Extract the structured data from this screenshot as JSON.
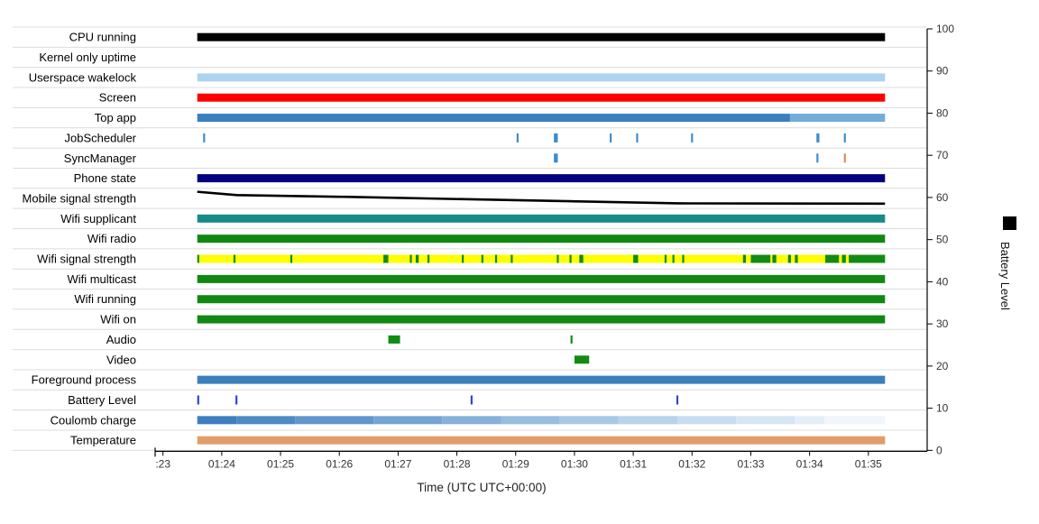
{
  "chart_data": {
    "type": "timeline",
    "title": "",
    "xlabel": "Time (UTC UTC+00:00)",
    "ylabel_right": "Battery Level",
    "x_range": [
      "01:22:52",
      "01:36:00"
    ],
    "x_ticks": [
      ":23",
      "01:24",
      "01:25",
      "01:26",
      "01:27",
      "01:28",
      "01:29",
      "01:30",
      "01:31",
      "01:32",
      "01:33",
      "01:34",
      "01:35"
    ],
    "y_right_range": [
      0,
      100
    ],
    "y_right_ticks": [
      "0",
      "10",
      "20",
      "30",
      "40",
      "50",
      "60",
      "70",
      "80",
      "90",
      "100"
    ],
    "legend": {
      "label": "Battery Level",
      "color": "#000000",
      "placement": "right"
    },
    "rows": [
      {
        "label": "CPU running",
        "color": "#000000",
        "segments": [
          [
            "01:23:35",
            "01:35:17"
          ]
        ]
      },
      {
        "label": "Kernel only uptime",
        "color": "#000000",
        "segments": []
      },
      {
        "label": "Userspace wakelock",
        "color": "#aed3ee",
        "segments": [
          [
            "01:23:35",
            "01:35:17"
          ]
        ]
      },
      {
        "label": "Screen",
        "color": "#ff0000",
        "segments": [
          [
            "01:23:35",
            "01:35:17"
          ]
        ]
      },
      {
        "label": "Top app",
        "color": "#3b7fbd",
        "segments": [
          [
            "01:23:35",
            "01:33:40"
          ],
          [
            "01:33:40",
            "01:35:17",
            "#72acd8"
          ]
        ]
      },
      {
        "label": "JobScheduler",
        "color": "#3a8cd0",
        "segments": [
          [
            "01:23:41",
            "01:23:43"
          ],
          [
            "01:29:01",
            "01:29:03"
          ],
          [
            "01:29:39",
            "01:29:43"
          ],
          [
            "01:30:36",
            "01:30:38"
          ],
          [
            "01:31:03",
            "01:31:05"
          ],
          [
            "01:31:59",
            "01:32:01"
          ],
          [
            "01:34:07",
            "01:34:10"
          ],
          [
            "01:34:35",
            "01:34:37"
          ]
        ]
      },
      {
        "label": "SyncManager",
        "color": "#3a8cd0",
        "segments": [
          [
            "01:29:39",
            "01:29:43"
          ],
          [
            "01:34:07",
            "01:34:09"
          ],
          [
            "01:34:35",
            "01:34:37",
            "#e08a50"
          ]
        ]
      },
      {
        "label": "Phone state",
        "color": "#000080",
        "segments": [
          [
            "01:23:35",
            "01:35:17"
          ]
        ]
      },
      {
        "label": "Mobile signal strength",
        "type": "line",
        "color": "#000000",
        "points": [
          [
            "01:23:35",
            0.1
          ],
          [
            "01:24:15",
            0.3
          ],
          [
            "01:26:00",
            0.4
          ],
          [
            "01:31:45",
            0.8
          ],
          [
            "01:35:17",
            0.82
          ]
        ]
      },
      {
        "label": "Wifi supplicant",
        "color": "#178a8a",
        "segments": [
          [
            "01:23:35",
            "01:35:17"
          ]
        ]
      },
      {
        "label": "Wifi radio",
        "color": "#118811",
        "segments": [
          [
            "01:23:35",
            "01:35:17"
          ]
        ]
      },
      {
        "label": "Wifi signal strength",
        "color": "#ffff00",
        "segments": [
          [
            "01:23:35",
            "01:35:17"
          ]
        ],
        "marks_color": "#128b12",
        "marks": [
          [
            "01:23:35",
            "01:23:37"
          ],
          [
            "01:24:12",
            "01:24:14"
          ],
          [
            "01:25:10",
            "01:25:12"
          ],
          [
            "01:26:45",
            "01:26:50"
          ],
          [
            "01:27:12",
            "01:27:14"
          ],
          [
            "01:27:18",
            "01:27:21"
          ],
          [
            "01:27:30",
            "01:27:32"
          ],
          [
            "01:28:05",
            "01:28:07"
          ],
          [
            "01:28:25",
            "01:28:27"
          ],
          [
            "01:28:39",
            "01:28:41"
          ],
          [
            "01:28:55",
            "01:28:57"
          ],
          [
            "01:29:42",
            "01:29:44"
          ],
          [
            "01:29:55",
            "01:29:57"
          ],
          [
            "01:30:05",
            "01:30:09"
          ],
          [
            "01:31:00",
            "01:31:05"
          ],
          [
            "01:31:32",
            "01:31:34"
          ],
          [
            "01:31:40",
            "01:31:42"
          ],
          [
            "01:31:50",
            "01:31:52"
          ],
          [
            "01:32:52",
            "01:32:55"
          ],
          [
            "01:33:00",
            "01:33:20"
          ],
          [
            "01:33:22",
            "01:33:26"
          ],
          [
            "01:33:38",
            "01:33:41"
          ],
          [
            "01:33:45",
            "01:33:48"
          ],
          [
            "01:34:16",
            "01:34:30"
          ],
          [
            "01:34:33",
            "01:34:37"
          ],
          [
            "01:34:40",
            "01:35:17"
          ]
        ]
      },
      {
        "label": "Wifi multicast",
        "color": "#118811",
        "segments": [
          [
            "01:23:35",
            "01:35:17"
          ]
        ]
      },
      {
        "label": "Wifi running",
        "color": "#118811",
        "segments": [
          [
            "01:23:35",
            "01:35:17"
          ]
        ]
      },
      {
        "label": "Wifi on",
        "color": "#118811",
        "segments": [
          [
            "01:23:35",
            "01:35:17"
          ]
        ]
      },
      {
        "label": "Audio",
        "color": "#128b12",
        "segments": [
          [
            "01:26:50",
            "01:27:02"
          ],
          [
            "01:29:56",
            "01:29:58"
          ]
        ]
      },
      {
        "label": "Video",
        "color": "#128b12",
        "segments": [
          [
            "01:30:00",
            "01:30:15"
          ]
        ]
      },
      {
        "label": "Foreground process",
        "color": "#3b7fbd",
        "segments": [
          [
            "01:23:35",
            "01:35:17"
          ]
        ]
      },
      {
        "label": "Battery Level",
        "color": "#2a44d6",
        "segments": [
          [
            "01:23:35",
            "01:23:37"
          ],
          [
            "01:24:14",
            "01:24:16"
          ],
          [
            "01:28:14",
            "01:28:16"
          ],
          [
            "01:31:44",
            "01:31:46"
          ]
        ]
      },
      {
        "label": "Coulomb charge",
        "type": "gradient",
        "segments": [
          [
            "01:23:35",
            "01:24:15",
            "#3d7fbf"
          ],
          [
            "01:24:15",
            "01:25:15",
            "#4d8ac6"
          ],
          [
            "01:25:15",
            "01:26:35",
            "#6296cc"
          ],
          [
            "01:26:35",
            "01:27:45",
            "#75a4d4"
          ],
          [
            "01:27:45",
            "01:28:45",
            "#87b1da"
          ],
          [
            "01:28:45",
            "01:29:45",
            "#97bddf"
          ],
          [
            "01:29:45",
            "01:30:45",
            "#a8c9e4"
          ],
          [
            "01:30:45",
            "01:31:45",
            "#b8d3ea"
          ],
          [
            "01:31:45",
            "01:32:45",
            "#c8ddef"
          ],
          [
            "01:32:45",
            "01:33:45",
            "#d6e6f3"
          ],
          [
            "01:33:45",
            "01:34:15",
            "#e3eef8"
          ],
          [
            "01:34:15",
            "01:35:17",
            "#f0f6fb"
          ]
        ]
      },
      {
        "label": "Temperature",
        "color": "#e29d6b",
        "segments": [
          [
            "01:23:35",
            "01:35:17"
          ]
        ]
      }
    ]
  }
}
